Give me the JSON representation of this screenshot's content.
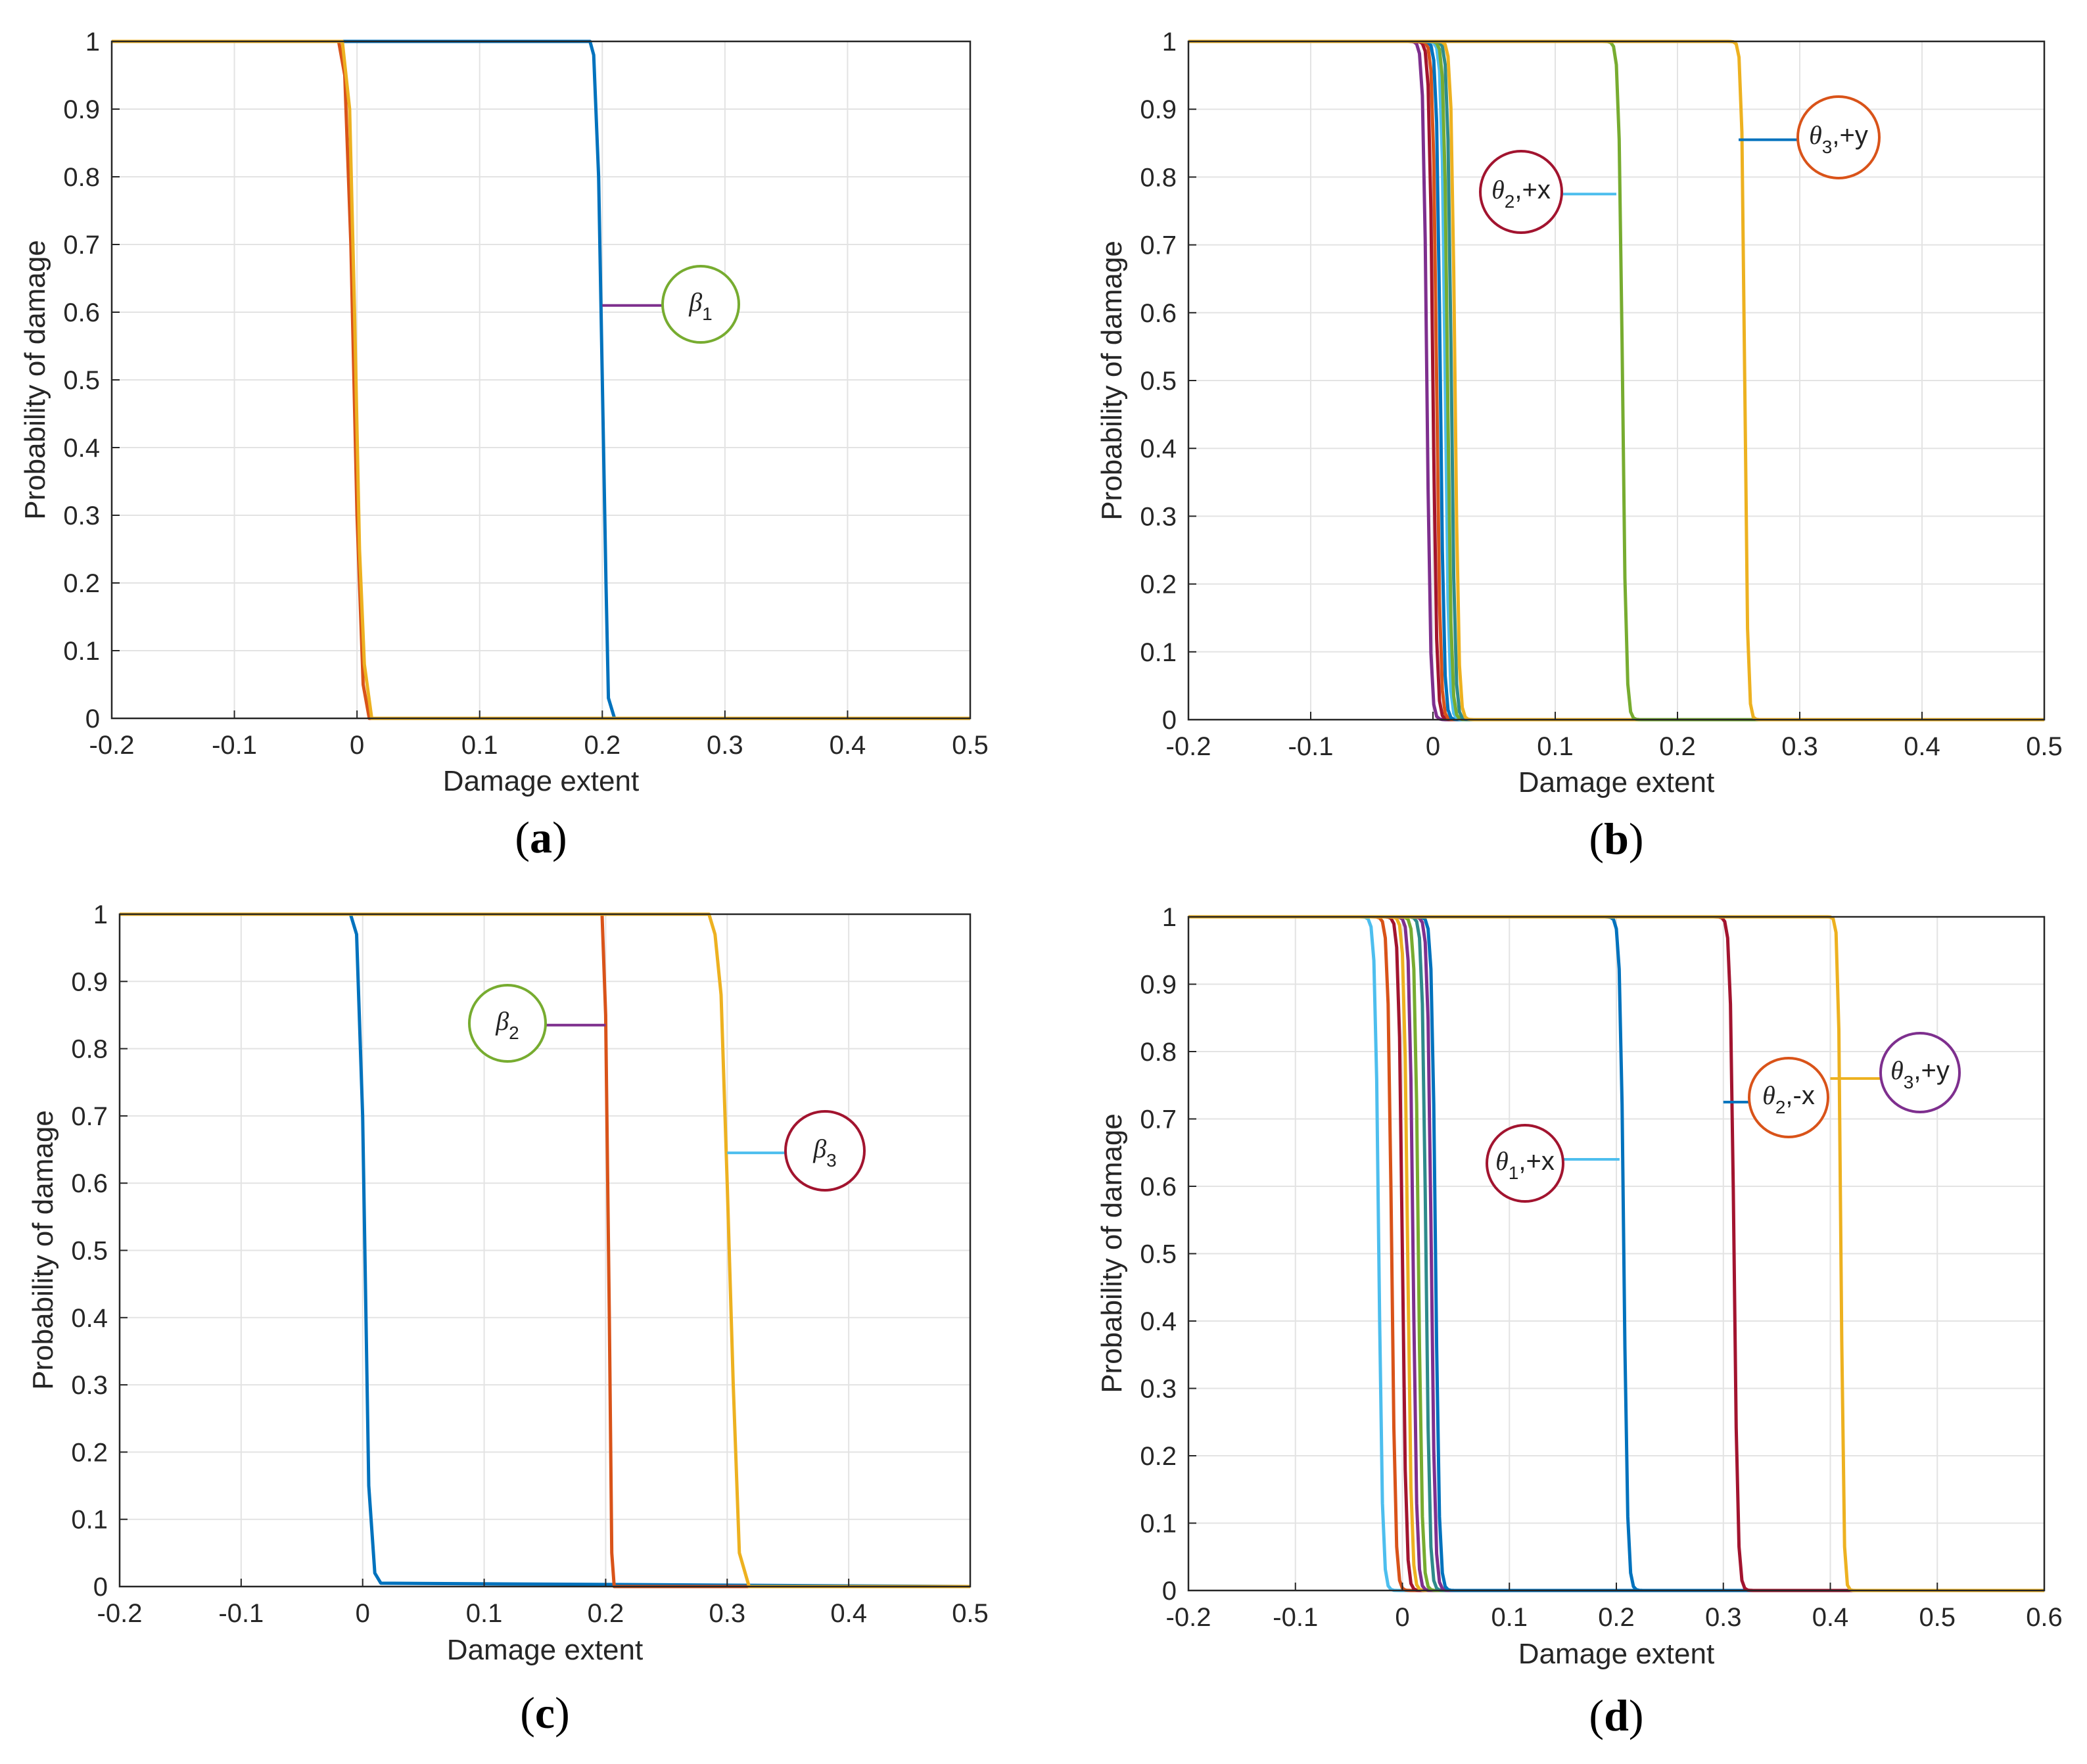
{
  "chart_data": [
    {
      "panel": "(a)",
      "panel_letter": "a",
      "type": "line",
      "xlabel": "Damage extent",
      "ylabel": "Probability of damage",
      "xlim": [
        -0.2,
        0.5
      ],
      "ylim": [
        0,
        1
      ],
      "xticks": [
        -0.2,
        -0.1,
        0,
        0.1,
        0.2,
        0.3,
        0.4,
        0.5
      ],
      "xtick_labels": [
        "-0.2",
        "-0.1",
        "0",
        "0.1",
        "0.2",
        "0.3",
        "0.4",
        "0.5"
      ],
      "yticks": [
        0,
        0.1,
        0.2,
        0.3,
        0.4,
        0.5,
        0.6,
        0.7,
        0.8,
        0.9,
        1
      ],
      "ytick_labels": [
        "0",
        "0.1",
        "0.2",
        "0.3",
        "0.4",
        "0.5",
        "0.6",
        "0.7",
        "0.8",
        "0.9",
        "1"
      ],
      "grid": true,
      "series": [
        {
          "name": "β1 (blue)",
          "color": "#0072BD",
          "x": [
            -0.2,
            0.19,
            0.193,
            0.197,
            0.2,
            0.203,
            0.205,
            0.21,
            0.5
          ],
          "y": [
            1,
            1,
            0.98,
            0.8,
            0.5,
            0.2,
            0.03,
            0,
            0
          ]
        },
        {
          "name": "orange",
          "color": "#D95319",
          "x": [
            -0.2,
            -0.015,
            -0.01,
            -0.005,
            0,
            0.005,
            0.01,
            0.5
          ],
          "y": [
            1,
            1,
            0.95,
            0.7,
            0.3,
            0.05,
            0,
            0
          ]
        },
        {
          "name": "yellow",
          "color": "#EDB120",
          "x": [
            -0.2,
            -0.012,
            -0.006,
            -0.002,
            0.002,
            0.006,
            0.012,
            0.5
          ],
          "y": [
            1,
            1,
            0.9,
            0.6,
            0.25,
            0.08,
            0,
            0
          ]
        }
      ],
      "annotations": [
        {
          "symbol": "β",
          "subscript": "1",
          "suffix": "",
          "circle_color": "#77AC30",
          "leader_color": "#7E2F8E",
          "target_x": 0.2,
          "target_y": 0.61
        }
      ]
    },
    {
      "panel": "(b)",
      "panel_letter": "b",
      "type": "line",
      "xlabel": "Damage extent",
      "ylabel": "Probability of damage",
      "xlim": [
        -0.2,
        0.5
      ],
      "ylim": [
        0,
        1
      ],
      "xticks": [
        -0.2,
        -0.1,
        0,
        0.1,
        0.2,
        0.3,
        0.4,
        0.5
      ],
      "xtick_labels": [
        "-0.2",
        "-0.1",
        "0",
        "0.1",
        "0.2",
        "0.3",
        "0.4",
        "0.5"
      ],
      "yticks": [
        0,
        0.1,
        0.2,
        0.3,
        0.4,
        0.5,
        0.6,
        0.7,
        0.8,
        0.9,
        1
      ],
      "ytick_labels": [
        "0",
        "0.1",
        "0.2",
        "0.3",
        "0.4",
        "0.5",
        "0.6",
        "0.7",
        "0.8",
        "0.9",
        "1"
      ],
      "grid": true,
      "series": [
        {
          "name": "purple",
          "color": "#7E2F8E",
          "center": -0.005,
          "width": 0.012
        },
        {
          "name": "dark red",
          "color": "#A2142F",
          "center": 0.0,
          "width": 0.012
        },
        {
          "name": "orange",
          "color": "#D95319",
          "center": 0.003,
          "width": 0.012
        },
        {
          "name": "blue",
          "color": "#0072BD",
          "center": 0.006,
          "width": 0.012
        },
        {
          "name": "light blue",
          "color": "#4DBEEE",
          "center": 0.01,
          "width": 0.012
        },
        {
          "name": "green",
          "color": "#77AC30",
          "center": 0.012,
          "width": 0.012
        },
        {
          "name": "teal",
          "color": "#2E8B8B",
          "center": 0.015,
          "width": 0.012
        },
        {
          "name": "yellow",
          "color": "#EDB120",
          "center": 0.018,
          "width": 0.012
        },
        {
          "name": "green (theta2,+x)",
          "color": "#77AC30",
          "center": 0.155,
          "width": 0.012
        },
        {
          "name": "yellow (theta3,+y)",
          "color": "#EDB120",
          "center": 0.255,
          "width": 0.01
        }
      ],
      "annotations": [
        {
          "symbol": "θ",
          "subscript": "2",
          "suffix": ",+x",
          "circle_color": "#A2142F",
          "leader_color": "#4DBEEE",
          "target_x": 0.15,
          "target_y": 0.775
        },
        {
          "symbol": "θ",
          "subscript": "3",
          "suffix": ",+y",
          "circle_color": "#D95319",
          "leader_color": "#0072BD",
          "target_x": 0.25,
          "target_y": 0.855
        }
      ]
    },
    {
      "panel": "(c)",
      "panel_letter": "c",
      "type": "line",
      "xlabel": "Damage extent",
      "ylabel": "Probability of damage",
      "xlim": [
        -0.2,
        0.5
      ],
      "ylim": [
        0,
        1
      ],
      "xticks": [
        -0.2,
        -0.1,
        0,
        0.1,
        0.2,
        0.3,
        0.4,
        0.5
      ],
      "xtick_labels": [
        "-0.2",
        "-0.1",
        "0",
        "0.1",
        "0.2",
        "0.3",
        "0.4",
        "0.5"
      ],
      "yticks": [
        0,
        0.1,
        0.2,
        0.3,
        0.4,
        0.5,
        0.6,
        0.7,
        0.8,
        0.9,
        1
      ],
      "ytick_labels": [
        "0",
        "0.1",
        "0.2",
        "0.3",
        "0.4",
        "0.5",
        "0.6",
        "0.7",
        "0.8",
        "0.9",
        "1"
      ],
      "grid": true,
      "series": [
        {
          "name": "blue",
          "color": "#0072BD",
          "x": [
            -0.2,
            -0.01,
            -0.005,
            0,
            0.005,
            0.01,
            0.015,
            0.5
          ],
          "y": [
            1,
            1,
            0.97,
            0.7,
            0.15,
            0.02,
            0.005,
            0
          ]
        },
        {
          "name": "β2 (orange)",
          "color": "#D95319",
          "x": [
            -0.2,
            0.197,
            0.2,
            0.203,
            0.205,
            0.207,
            0.5
          ],
          "y": [
            1,
            1,
            0.85,
            0.4,
            0.05,
            0,
            0
          ]
        },
        {
          "name": "β3 (yellow)",
          "color": "#EDB120",
          "x": [
            -0.2,
            0.285,
            0.29,
            0.295,
            0.3,
            0.305,
            0.31,
            0.318,
            0.5
          ],
          "y": [
            1,
            1,
            0.97,
            0.88,
            0.6,
            0.3,
            0.05,
            0,
            0
          ]
        }
      ],
      "annotations": [
        {
          "symbol": "β",
          "subscript": "2",
          "suffix": "",
          "circle_color": "#77AC30",
          "leader_color": "#7E2F8E",
          "target_x": 0.2,
          "target_y": 0.835
        },
        {
          "symbol": "β",
          "subscript": "3",
          "suffix": "",
          "circle_color": "#A2142F",
          "leader_color": "#4DBEEE",
          "target_x": 0.3,
          "target_y": 0.645
        }
      ]
    },
    {
      "panel": "(d)",
      "panel_letter": "d",
      "type": "line",
      "xlabel": "Damage extent",
      "ylabel": "Probability of damage",
      "xlim": [
        -0.2,
        0.6
      ],
      "ylim": [
        0,
        1
      ],
      "xticks": [
        -0.2,
        -0.1,
        0,
        0.1,
        0.2,
        0.3,
        0.4,
        0.5,
        0.6
      ],
      "xtick_labels": [
        "-0.2",
        "-0.1",
        "0",
        "0.1",
        "0.2",
        "0.3",
        "0.4",
        "0.5",
        "0.6"
      ],
      "yticks": [
        0,
        0.1,
        0.2,
        0.3,
        0.4,
        0.5,
        0.6,
        0.7,
        0.8,
        0.9,
        1
      ],
      "ytick_labels": [
        "0",
        "0.1",
        "0.2",
        "0.3",
        "0.4",
        "0.5",
        "0.6",
        "0.7",
        "0.8",
        "0.9",
        "1"
      ],
      "grid": true,
      "series": [
        {
          "name": "light blue",
          "color": "#4DBEEE",
          "center": -0.022,
          "width": 0.014
        },
        {
          "name": "orange",
          "color": "#D95319",
          "center": -0.01,
          "width": 0.014
        },
        {
          "name": "dark red",
          "color": "#A2142F",
          "center": 0.0,
          "width": 0.014
        },
        {
          "name": "yellow",
          "color": "#EDB120",
          "center": 0.005,
          "width": 0.014
        },
        {
          "name": "purple",
          "color": "#7E2F8E",
          "center": 0.01,
          "width": 0.014
        },
        {
          "name": "green",
          "color": "#77AC30",
          "center": 0.015,
          "width": 0.014
        },
        {
          "name": "teal",
          "color": "#2E8B8B",
          "center": 0.022,
          "width": 0.014
        },
        {
          "name": "purple 2",
          "color": "#7E2F8E",
          "center": 0.027,
          "width": 0.014
        },
        {
          "name": "blue",
          "color": "#0072BD",
          "center": 0.031,
          "width": 0.014
        },
        {
          "name": "blue (theta1,+x)",
          "color": "#0072BD",
          "center": 0.207,
          "width": 0.014
        },
        {
          "name": "dark red (theta2,-x)",
          "color": "#A2142F",
          "center": 0.31,
          "width": 0.014
        },
        {
          "name": "yellow (theta3,+y)",
          "color": "#EDB120",
          "center": 0.41,
          "width": 0.01
        }
      ],
      "annotations": [
        {
          "symbol": "θ",
          "subscript": "1",
          "suffix": ",+x",
          "circle_color": "#A2142F",
          "leader_color": "#4DBEEE",
          "target_x": 0.203,
          "target_y": 0.64
        },
        {
          "symbol": "θ",
          "subscript": "2",
          "suffix": ",-x",
          "circle_color": "#D95319",
          "leader_color": "#0072BD",
          "target_x": 0.3,
          "target_y": 0.725
        },
        {
          "symbol": "θ",
          "subscript": "3",
          "suffix": ",+y",
          "circle_color": "#7E2F8E",
          "leader_color": "#EDB120",
          "target_x": 0.4,
          "target_y": 0.76
        }
      ]
    }
  ]
}
